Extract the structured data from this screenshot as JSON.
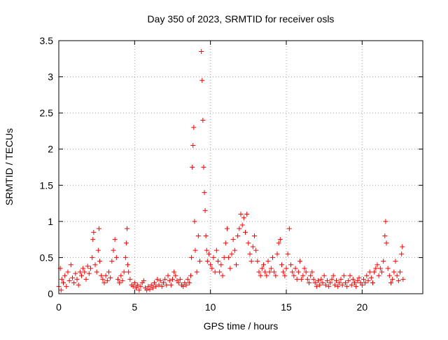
{
  "chart_data": {
    "type": "scatter",
    "title": "Day 350 of 2023, SRMTID for receiver osls",
    "xlabel": "GPS time / hours",
    "ylabel": "SRMTID / TECUs",
    "xlim": [
      0,
      24
    ],
    "ylim": [
      0,
      3.5
    ],
    "xticks": [
      0,
      5,
      10,
      15,
      20
    ],
    "xtick_labels": [
      "0",
      "5",
      "10",
      "15",
      "20"
    ],
    "yticks": [
      0,
      0.5,
      1,
      1.5,
      2,
      2.5,
      3,
      3.5
    ],
    "ytick_labels": [
      "0",
      "0.5",
      "1",
      "1.5",
      "2",
      "2.5",
      "3",
      "3.5"
    ],
    "grid": true,
    "marker": "+",
    "series": [
      {
        "name": "SRMTID",
        "color": "#ff0000",
        "points": [
          [
            0.0,
            0.1
          ],
          [
            0.1,
            0.35
          ],
          [
            0.15,
            0.05
          ],
          [
            0.2,
            0.2
          ],
          [
            0.3,
            0.15
          ],
          [
            0.4,
            0.25
          ],
          [
            0.5,
            0.1
          ],
          [
            0.6,
            0.3
          ],
          [
            0.7,
            0.18
          ],
          [
            0.8,
            0.4
          ],
          [
            0.9,
            0.22
          ],
          [
            1.0,
            0.15
          ],
          [
            1.1,
            0.28
          ],
          [
            1.2,
            0.2
          ],
          [
            1.3,
            0.12
          ],
          [
            1.4,
            0.3
          ],
          [
            1.5,
            0.25
          ],
          [
            1.6,
            0.35
          ],
          [
            1.7,
            0.3
          ],
          [
            1.8,
            0.2
          ],
          [
            1.9,
            0.38
          ],
          [
            2.0,
            0.28
          ],
          [
            2.1,
            0.35
          ],
          [
            2.2,
            0.5
          ],
          [
            2.25,
            0.75
          ],
          [
            2.3,
            0.85
          ],
          [
            2.4,
            0.4
          ],
          [
            2.5,
            0.3
          ],
          [
            2.6,
            0.6
          ],
          [
            2.65,
            0.9
          ],
          [
            2.7,
            0.45
          ],
          [
            2.8,
            0.25
          ],
          [
            2.9,
            0.2
          ],
          [
            3.0,
            0.15
          ],
          [
            3.1,
            0.25
          ],
          [
            3.2,
            0.18
          ],
          [
            3.3,
            0.3
          ],
          [
            3.4,
            0.22
          ],
          [
            3.5,
            0.45
          ],
          [
            3.6,
            0.6
          ],
          [
            3.7,
            0.75
          ],
          [
            3.8,
            0.5
          ],
          [
            3.9,
            0.2
          ],
          [
            4.0,
            0.15
          ],
          [
            4.1,
            0.25
          ],
          [
            4.2,
            0.18
          ],
          [
            4.3,
            0.3
          ],
          [
            4.4,
            0.5
          ],
          [
            4.45,
            0.7
          ],
          [
            4.5,
            0.9
          ],
          [
            4.55,
            0.4
          ],
          [
            4.6,
            0.3
          ],
          [
            4.7,
            0.2
          ],
          [
            4.8,
            0.12
          ],
          [
            4.9,
            0.1
          ],
          [
            5.0,
            0.15
          ],
          [
            5.1,
            0.08
          ],
          [
            5.2,
            0.12
          ],
          [
            5.3,
            0.05
          ],
          [
            5.4,
            0.1
          ],
          [
            5.5,
            0.15
          ],
          [
            5.6,
            0.18
          ],
          [
            5.7,
            0.08
          ],
          [
            5.8,
            0.05
          ],
          [
            5.9,
            0.1
          ],
          [
            6.0,
            0.06
          ],
          [
            6.1,
            0.12
          ],
          [
            6.2,
            0.08
          ],
          [
            6.3,
            0.15
          ],
          [
            6.4,
            0.1
          ],
          [
            6.5,
            0.2
          ],
          [
            6.6,
            0.12
          ],
          [
            6.7,
            0.18
          ],
          [
            6.8,
            0.1
          ],
          [
            6.9,
            0.15
          ],
          [
            7.0,
            0.2
          ],
          [
            7.1,
            0.12
          ],
          [
            7.2,
            0.25
          ],
          [
            7.3,
            0.18
          ],
          [
            7.4,
            0.12
          ],
          [
            7.5,
            0.2
          ],
          [
            7.6,
            0.3
          ],
          [
            7.7,
            0.25
          ],
          [
            7.8,
            0.18
          ],
          [
            7.9,
            0.15
          ],
          [
            8.0,
            0.2
          ],
          [
            8.1,
            0.12
          ],
          [
            8.2,
            0.1
          ],
          [
            8.3,
            0.15
          ],
          [
            8.4,
            0.12
          ],
          [
            8.5,
            0.2
          ],
          [
            8.6,
            0.15
          ],
          [
            8.7,
            0.25
          ],
          [
            8.75,
            0.5
          ],
          [
            8.8,
            1.75
          ],
          [
            8.85,
            2.05
          ],
          [
            8.9,
            2.3
          ],
          [
            8.95,
            1.0
          ],
          [
            9.0,
            0.6
          ],
          [
            9.1,
            0.3
          ],
          [
            9.2,
            0.8
          ],
          [
            9.3,
            0.45
          ],
          [
            9.4,
            3.35
          ],
          [
            9.45,
            2.95
          ],
          [
            9.5,
            2.4
          ],
          [
            9.55,
            1.75
          ],
          [
            9.6,
            1.4
          ],
          [
            9.65,
            1.15
          ],
          [
            9.7,
            0.8
          ],
          [
            9.75,
            0.6
          ],
          [
            9.8,
            0.45
          ],
          [
            9.9,
            0.55
          ],
          [
            10.0,
            0.4
          ],
          [
            10.1,
            0.35
          ],
          [
            10.2,
            0.5
          ],
          [
            10.3,
            0.3
          ],
          [
            10.4,
            0.6
          ],
          [
            10.5,
            0.45
          ],
          [
            10.6,
            0.3
          ],
          [
            10.7,
            0.4
          ],
          [
            10.8,
            0.25
          ],
          [
            10.9,
            0.5
          ],
          [
            11.0,
            0.7
          ],
          [
            11.1,
            0.9
          ],
          [
            11.2,
            0.5
          ],
          [
            11.3,
            0.35
          ],
          [
            11.4,
            0.55
          ],
          [
            11.5,
            0.75
          ],
          [
            11.6,
            0.6
          ],
          [
            11.7,
            0.4
          ],
          [
            11.8,
            0.8
          ],
          [
            11.9,
            0.9
          ],
          [
            12.0,
            1.1
          ],
          [
            12.1,
            0.95
          ],
          [
            12.2,
            1.05
          ],
          [
            12.3,
            0.85
          ],
          [
            12.4,
            1.1
          ],
          [
            12.5,
            0.7
          ],
          [
            12.6,
            0.55
          ],
          [
            12.7,
            0.45
          ],
          [
            12.8,
            0.65
          ],
          [
            12.9,
            0.8
          ],
          [
            13.0,
            0.6
          ],
          [
            13.1,
            0.45
          ],
          [
            13.2,
            0.3
          ],
          [
            13.3,
            0.25
          ],
          [
            13.4,
            0.35
          ],
          [
            13.5,
            0.4
          ],
          [
            13.6,
            0.3
          ],
          [
            13.7,
            0.25
          ],
          [
            13.8,
            0.45
          ],
          [
            13.9,
            0.3
          ],
          [
            14.0,
            0.35
          ],
          [
            14.1,
            0.5
          ],
          [
            14.2,
            0.3
          ],
          [
            14.3,
            0.25
          ],
          [
            14.4,
            0.55
          ],
          [
            14.5,
            0.7
          ],
          [
            14.6,
            0.75
          ],
          [
            14.7,
            0.4
          ],
          [
            14.8,
            0.3
          ],
          [
            14.9,
            0.25
          ],
          [
            15.0,
            0.35
          ],
          [
            15.1,
            0.55
          ],
          [
            15.2,
            0.9
          ],
          [
            15.3,
            0.4
          ],
          [
            15.4,
            0.3
          ],
          [
            15.5,
            0.25
          ],
          [
            15.6,
            0.35
          ],
          [
            15.7,
            0.2
          ],
          [
            15.8,
            0.3
          ],
          [
            15.9,
            0.45
          ],
          [
            16.0,
            0.2
          ],
          [
            16.1,
            0.25
          ],
          [
            16.2,
            0.35
          ],
          [
            16.3,
            0.3
          ],
          [
            16.4,
            0.2
          ],
          [
            16.5,
            0.15
          ],
          [
            16.6,
            0.25
          ],
          [
            16.7,
            0.3
          ],
          [
            16.8,
            0.2
          ],
          [
            16.9,
            0.15
          ],
          [
            17.0,
            0.1
          ],
          [
            17.1,
            0.18
          ],
          [
            17.2,
            0.12
          ],
          [
            17.3,
            0.2
          ],
          [
            17.4,
            0.15
          ],
          [
            17.5,
            0.25
          ],
          [
            17.6,
            0.12
          ],
          [
            17.7,
            0.18
          ],
          [
            17.8,
            0.1
          ],
          [
            17.9,
            0.15
          ],
          [
            18.0,
            0.2
          ],
          [
            18.1,
            0.25
          ],
          [
            18.2,
            0.12
          ],
          [
            18.3,
            0.18
          ],
          [
            18.4,
            0.1
          ],
          [
            18.5,
            0.15
          ],
          [
            18.6,
            0.2
          ],
          [
            18.7,
            0.12
          ],
          [
            18.8,
            0.25
          ],
          [
            18.9,
            0.15
          ],
          [
            19.0,
            0.1
          ],
          [
            19.1,
            0.18
          ],
          [
            19.2,
            0.25
          ],
          [
            19.3,
            0.12
          ],
          [
            19.4,
            0.2
          ],
          [
            19.5,
            0.15
          ],
          [
            19.6,
            0.1
          ],
          [
            19.7,
            0.18
          ],
          [
            19.8,
            0.22
          ],
          [
            19.9,
            0.15
          ],
          [
            20.0,
            0.12
          ],
          [
            20.1,
            0.2
          ],
          [
            20.2,
            0.15
          ],
          [
            20.3,
            0.25
          ],
          [
            20.4,
            0.18
          ],
          [
            20.5,
            0.3
          ],
          [
            20.6,
            0.22
          ],
          [
            20.7,
            0.15
          ],
          [
            20.8,
            0.3
          ],
          [
            20.9,
            0.35
          ],
          [
            21.0,
            0.4
          ],
          [
            21.1,
            0.25
          ],
          [
            21.2,
            0.35
          ],
          [
            21.3,
            0.3
          ],
          [
            21.4,
            0.45
          ],
          [
            21.5,
            0.8
          ],
          [
            21.55,
            1.0
          ],
          [
            21.6,
            0.7
          ],
          [
            21.7,
            0.35
          ],
          [
            21.8,
            0.25
          ],
          [
            21.9,
            0.15
          ],
          [
            22.0,
            0.2
          ],
          [
            22.1,
            0.3
          ],
          [
            22.2,
            0.45
          ],
          [
            22.3,
            0.25
          ],
          [
            22.4,
            0.18
          ],
          [
            22.5,
            0.3
          ],
          [
            22.6,
            0.55
          ],
          [
            22.65,
            0.65
          ],
          [
            22.7,
            0.2
          ]
        ]
      }
    ]
  }
}
